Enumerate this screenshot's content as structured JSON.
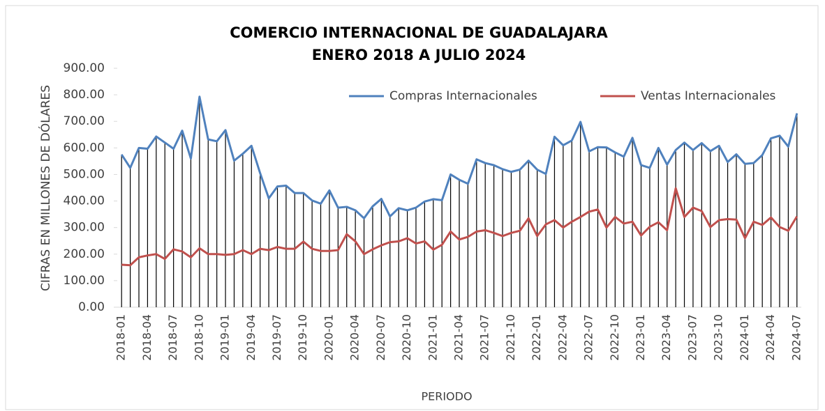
{
  "chart_data": {
    "type": "line",
    "title": [
      "COMERCIO INTERNACIONAL DE GUADALAJARA",
      "ENERO 2018 A JULIO 2024"
    ],
    "y_label": "CIFRAS EN MILLONES DE DÓLARES",
    "x_label": "PERIODO",
    "categories": [
      "2018-01",
      null,
      null,
      "2018-04",
      null,
      null,
      "2018-07",
      null,
      null,
      "2018-10",
      null,
      null,
      "2019-01",
      null,
      null,
      "2019-04",
      null,
      null,
      "2019-07",
      null,
      null,
      "2019-10",
      null,
      null,
      "2020-01",
      null,
      null,
      "2020-04",
      null,
      null,
      "2020-07",
      null,
      null,
      "2020-10",
      null,
      null,
      "2021-01",
      null,
      null,
      "2021-04",
      null,
      null,
      "2021-07",
      null,
      null,
      "2021-10",
      null,
      null,
      "2022-01",
      null,
      null,
      "2022-04",
      null,
      null,
      "2022-07",
      null,
      null,
      "2022-10",
      null,
      null,
      "2023-01",
      null,
      null,
      "2023-04",
      null,
      null,
      "2023-07",
      null,
      null,
      "2023-10",
      null,
      null,
      "2024-01",
      null,
      null,
      "2024-04",
      null,
      null,
      "2024-07"
    ],
    "series": [
      {
        "name": "Compras Internacionales",
        "color": "#4f81bd",
        "drop_lines": true,
        "values": [
          575,
          525,
          600,
          597,
          643,
          620,
          597,
          665,
          560,
          793,
          632,
          625,
          667,
          552,
          578,
          608,
          505,
          410,
          455,
          458,
          430,
          430,
          402,
          390,
          440,
          375,
          378,
          365,
          335,
          380,
          408,
          342,
          373,
          365,
          375,
          398,
          407,
          403,
          500,
          480,
          465,
          557,
          543,
          535,
          520,
          510,
          518,
          552,
          518,
          502,
          642,
          610,
          628,
          698,
          587,
          603,
          602,
          583,
          567,
          638,
          535,
          525,
          600,
          537,
          592,
          620,
          592,
          618,
          588,
          608,
          547,
          576,
          540,
          543,
          573,
          636,
          646,
          605,
          730
        ]
      },
      {
        "name": "Ventas Internacionales",
        "color": "#c0504d",
        "values": [
          160,
          158,
          188,
          195,
          200,
          182,
          218,
          210,
          188,
          222,
          200,
          200,
          197,
          200,
          215,
          200,
          220,
          215,
          227,
          220,
          220,
          247,
          220,
          212,
          212,
          215,
          275,
          248,
          200,
          218,
          233,
          245,
          248,
          260,
          240,
          248,
          217,
          235,
          285,
          255,
          265,
          285,
          290,
          280,
          268,
          280,
          288,
          335,
          268,
          312,
          328,
          300,
          322,
          340,
          360,
          368,
          300,
          340,
          315,
          322,
          270,
          303,
          320,
          290,
          448,
          340,
          375,
          362,
          302,
          328,
          332,
          330,
          260,
          322,
          310,
          338,
          302,
          288,
          342
        ]
      }
    ],
    "ylim": [
      0,
      900
    ],
    "yticks": [
      {
        "value": 0,
        "label": "0.00"
      },
      {
        "value": 100,
        "label": "100.00"
      },
      {
        "value": 200,
        "label": "200.00"
      },
      {
        "value": 300,
        "label": "300.00"
      },
      {
        "value": 400,
        "label": "400.00"
      },
      {
        "value": 500,
        "label": "500.00"
      },
      {
        "value": 600,
        "label": "600.00"
      },
      {
        "value": 700,
        "label": "700.00"
      },
      {
        "value": 800,
        "label": "800.00"
      },
      {
        "value": 900,
        "label": "900.00"
      }
    ],
    "grid": false,
    "legend": "top"
  }
}
